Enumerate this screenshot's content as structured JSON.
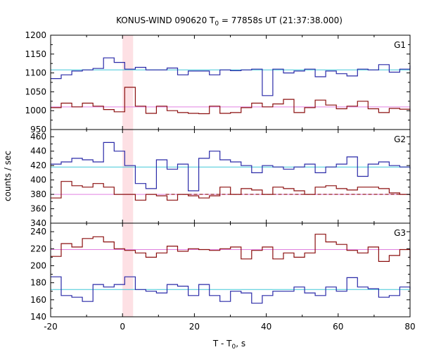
{
  "chart_data": {
    "type": "line",
    "title": "KONUS-WIND 090620 T",
    "title_sub": "0",
    "title_rest": " = 77858s UT (21:37:38.000)",
    "xlabel": "T - T",
    "xlabel_sub": "0",
    "xlabel_rest": ", s",
    "ylabel": "counts / sec",
    "xlim": [
      -20,
      80
    ],
    "x_ticks": [
      -20,
      0,
      20,
      40,
      60,
      80
    ],
    "highlight_x": [
      0,
      2.944
    ],
    "bin_edges": [
      -20,
      -17.056,
      -14.112,
      -11.168,
      -8.224,
      -5.28,
      -2.336,
      0.608,
      3.552,
      6.496,
      9.44,
      12.384,
      15.328,
      18.272,
      21.216,
      24.16,
      27.104,
      30.048,
      32.992,
      35.936,
      38.88,
      41.824,
      44.768,
      47.712,
      50.656,
      53.6,
      56.544,
      59.488,
      62.432,
      65.376,
      68.32,
      71.264,
      74.208,
      77.152,
      80
    ],
    "colors": {
      "blue": "#2a2aa8",
      "red": "#8b0f0f",
      "cyan": "#40c8d8",
      "pink": "#e080e0",
      "highlight": "#fde0e4"
    },
    "panels": [
      {
        "name": "G1",
        "ylim": [
          950,
          1200
        ],
        "y_ticks": [
          950,
          1000,
          1050,
          1100,
          1150,
          1200
        ],
        "bg_blue": 1108,
        "bg_red": 1010,
        "series": [
          {
            "name": "blue",
            "values": [
              1085,
              1095,
              1105,
              1108,
              1112,
              1140,
              1128,
              1110,
              1115,
              1108,
              1108,
              1113,
              1095,
              1105,
              1105,
              1095,
              1108,
              1106,
              1108,
              1110,
              1040,
              1110,
              1100,
              1105,
              1110,
              1090,
              1105,
              1098,
              1092,
              1110,
              1108,
              1122,
              1102,
              1110,
              1120
            ]
          },
          {
            "name": "red",
            "values": [
              1008,
              1020,
              1010,
              1020,
              1012,
              1003,
              997,
              1062,
              1012,
              993,
              1012,
              1000,
              995,
              993,
              992,
              1012,
              993,
              995,
              1008,
              1020,
              1010,
              1018,
              1030,
              995,
              1008,
              1028,
              1015,
              1005,
              1012,
              1025,
              1005,
              995,
              1006,
              1004,
              997
            ]
          }
        ]
      },
      {
        "name": "G2",
        "ylim": [
          340,
          470
        ],
        "y_ticks": [
          340,
          360,
          380,
          400,
          420,
          440,
          460
        ],
        "bg_blue": 418,
        "bg_red": 380,
        "series": [
          {
            "name": "blue",
            "values": [
              422,
              425,
              430,
              428,
              425,
              452,
              440,
              420,
              395,
              388,
              428,
              415,
              422,
              385,
              430,
              440,
              428,
              425,
              420,
              410,
              420,
              418,
              415,
              418,
              422,
              410,
              418,
              422,
              432,
              405,
              422,
              425,
              420,
              418,
              415
            ]
          },
          {
            "name": "red",
            "values": [
              375,
              398,
              392,
              390,
              395,
              390,
              380,
              380,
              372,
              380,
              378,
              372,
              380,
              378,
              375,
              378,
              390,
              380,
              388,
              386,
              380,
              390,
              388,
              385,
              380,
              390,
              392,
              388,
              386,
              390,
              390,
              388,
              382,
              380,
              378
            ]
          }
        ]
      },
      {
        "name": "G3",
        "ylim": [
          140,
          250
        ],
        "y_ticks": [
          140,
          160,
          180,
          200,
          220,
          240
        ],
        "bg_blue": 172,
        "bg_red": 219,
        "series": [
          {
            "name": "blue",
            "values": [
              187,
              165,
              163,
              158,
              178,
              175,
              178,
              187,
              172,
              170,
              168,
              178,
              176,
              165,
              178,
              165,
              158,
              170,
              168,
              156,
              165,
              170,
              170,
              175,
              168,
              165,
              175,
              170,
              186,
              175,
              173,
              163,
              165,
              175,
              172
            ]
          },
          {
            "name": "red",
            "values": [
              211,
              226,
              222,
              232,
              234,
              228,
              220,
              218,
              215,
              210,
              215,
              223,
              217,
              220,
              219,
              218,
              220,
              222,
              208,
              218,
              222,
              208,
              215,
              210,
              215,
              237,
              228,
              225,
              218,
              215,
              222,
              205,
              212,
              219,
              207
            ]
          }
        ]
      }
    ]
  }
}
